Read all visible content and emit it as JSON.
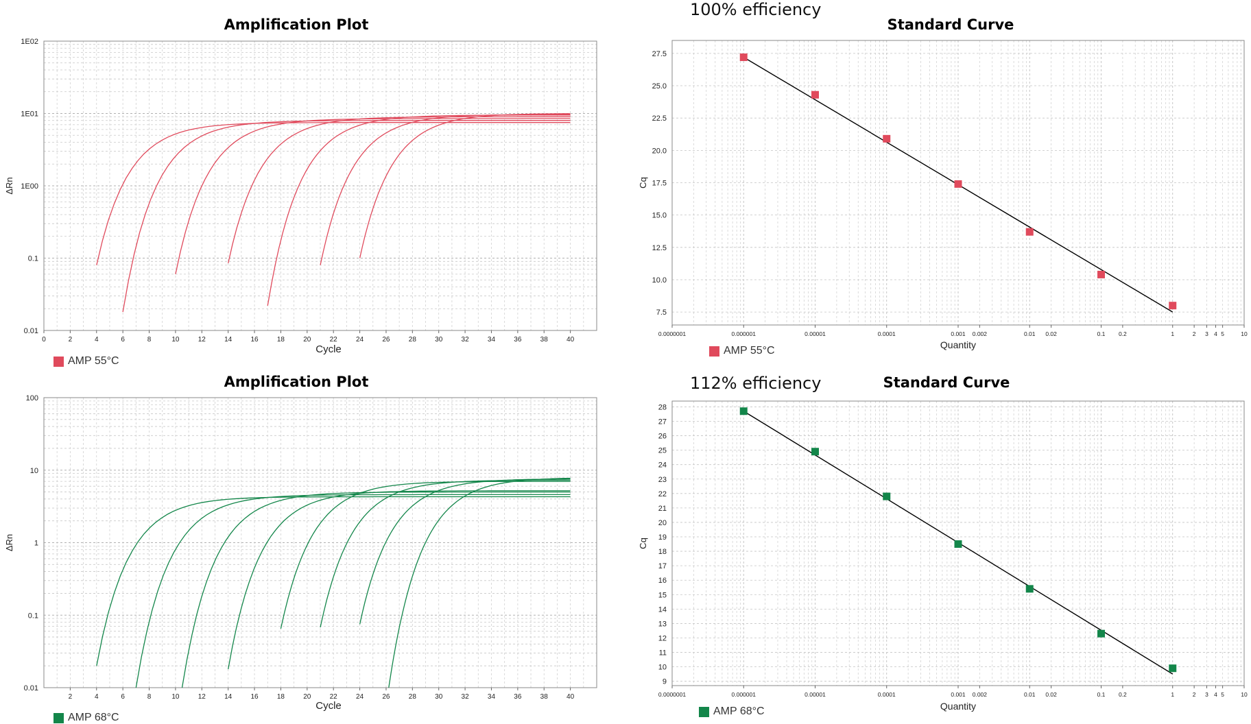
{
  "panels": {
    "amp1": {
      "title": "Amplification Plot",
      "legend": "AMP 55°C",
      "color": "#e04a5c"
    },
    "std1": {
      "efficiency": "100% efficiency",
      "title": "Standard Curve",
      "legend": "AMP 55°C",
      "color": "#e04a5c"
    },
    "amp2": {
      "title": "Amplification Plot",
      "legend": "AMP 68°C",
      "color": "#13864a"
    },
    "std2": {
      "efficiency": "112% efficiency",
      "title": "Standard Curve",
      "legend": "AMP 68°C",
      "color": "#13864a"
    }
  },
  "chart_data": [
    {
      "id": "amp1",
      "type": "line",
      "title": "Amplification Plot",
      "xlabel": "Cycle",
      "ylabel": "ΔRn",
      "yscale": "log",
      "xlim": [
        0,
        42
      ],
      "ylim": [
        0.01,
        100
      ],
      "xticks": [
        0,
        2,
        4,
        6,
        8,
        10,
        12,
        14,
        16,
        18,
        20,
        22,
        24,
        26,
        28,
        30,
        32,
        34,
        36,
        38,
        40
      ],
      "xtick_labels": [
        "0",
        "2",
        "4",
        "6",
        "8",
        "10",
        "12",
        "14",
        "16",
        "18",
        "20",
        "22",
        "24",
        "26",
        "28",
        "30",
        "32",
        "34",
        "36",
        "38",
        "40"
      ],
      "yticks": [
        0.01,
        0.1,
        1,
        10,
        100
      ],
      "ytick_labels": [
        "0.01",
        "0.1",
        "1E00",
        "1E01",
        "1E02"
      ],
      "grid": true,
      "color": "#e04a5c",
      "series": [
        {
          "start_cycle": 4,
          "start_value": 0.08,
          "plateau": 7.5,
          "end_cycle": 40
        },
        {
          "start_cycle": 6,
          "start_value": 0.018,
          "plateau": 8.0,
          "end_cycle": 40
        },
        {
          "start_cycle": 10,
          "start_value": 0.06,
          "plateau": 8.5,
          "end_cycle": 40
        },
        {
          "start_cycle": 14,
          "start_value": 0.085,
          "plateau": 9.0,
          "end_cycle": 40
        },
        {
          "start_cycle": 17,
          "start_value": 0.022,
          "plateau": 9.5,
          "end_cycle": 40
        },
        {
          "start_cycle": 21,
          "start_value": 0.08,
          "plateau": 9.7,
          "end_cycle": 40
        },
        {
          "start_cycle": 24,
          "start_value": 0.1,
          "plateau": 10.0,
          "end_cycle": 40
        }
      ]
    },
    {
      "id": "std1",
      "type": "scatter",
      "title": "Standard Curve",
      "xlabel": "Quantity",
      "ylabel": "Cq",
      "xscale": "log",
      "xlim": [
        1e-07,
        10
      ],
      "ylim": [
        6.5,
        28.5
      ],
      "xticks": [
        1e-07,
        1e-06,
        1e-05,
        0.0001,
        0.001,
        0.002,
        0.01,
        0.02,
        0.1,
        0.2,
        1,
        2,
        3,
        4,
        5,
        10
      ],
      "xtick_labels": [
        "0.0000001",
        "0.000001",
        "0.00001",
        "0.0001",
        "0.001",
        "0.002",
        "0.01",
        "0.02",
        "0.1",
        "0.2",
        "1",
        "2",
        "3",
        "4",
        "5",
        "10"
      ],
      "yticks": [
        7.5,
        10.0,
        12.5,
        15.0,
        17.5,
        20.0,
        22.5,
        25.0,
        27.5
      ],
      "ytick_labels": [
        "7.5",
        "10.0",
        "12.5",
        "15.0",
        "17.5",
        "20.0",
        "22.5",
        "25.0",
        "27.5"
      ],
      "grid": true,
      "color": "#e04a5c",
      "points": [
        {
          "x": 1e-06,
          "y": 27.2
        },
        {
          "x": 1e-05,
          "y": 24.3
        },
        {
          "x": 0.0001,
          "y": 20.9
        },
        {
          "x": 0.001,
          "y": 17.4
        },
        {
          "x": 0.01,
          "y": 13.7
        },
        {
          "x": 0.1,
          "y": 10.4
        },
        {
          "x": 1,
          "y": 8.0
        }
      ],
      "fit_line": [
        {
          "x": 1e-06,
          "y": 27.2
        },
        {
          "x": 1,
          "y": 7.5
        }
      ]
    },
    {
      "id": "amp2",
      "type": "line",
      "title": "Amplification Plot",
      "xlabel": "Cycle",
      "ylabel": "ΔRn",
      "yscale": "log",
      "xlim": [
        0,
        42
      ],
      "ylim": [
        0.01,
        100
      ],
      "xticks": [
        2,
        4,
        6,
        8,
        10,
        12,
        14,
        16,
        18,
        20,
        22,
        24,
        26,
        28,
        30,
        32,
        34,
        36,
        38,
        40
      ],
      "xtick_labels": [
        "2",
        "4",
        "6",
        "8",
        "10",
        "12",
        "14",
        "16",
        "18",
        "20",
        "22",
        "24",
        "26",
        "28",
        "30",
        "32",
        "34",
        "36",
        "38",
        "40"
      ],
      "yticks": [
        0.01,
        0.1,
        1,
        10,
        100
      ],
      "ytick_labels": [
        "0.01",
        "0.1",
        "1",
        "10",
        "100"
      ],
      "grid": true,
      "color": "#13864a",
      "series": [
        {
          "start_cycle": 4,
          "start_value": 0.02,
          "plateau": 4.3,
          "end_cycle": 40
        },
        {
          "start_cycle": 7,
          "start_value": 0.01,
          "plateau": 4.6,
          "end_cycle": 40
        },
        {
          "start_cycle": 10.5,
          "start_value": 0.01,
          "plateau": 5.0,
          "end_cycle": 40
        },
        {
          "start_cycle": 14,
          "start_value": 0.018,
          "plateau": 5.2,
          "end_cycle": 40
        },
        {
          "start_cycle": 18,
          "start_value": 0.065,
          "plateau": 7.0,
          "end_cycle": 40
        },
        {
          "start_cycle": 21,
          "start_value": 0.068,
          "plateau": 7.3,
          "end_cycle": 40
        },
        {
          "start_cycle": 24,
          "start_value": 0.075,
          "plateau": 7.6,
          "end_cycle": 40
        },
        {
          "start_cycle": 26.2,
          "start_value": 0.01,
          "plateau": 7.9,
          "end_cycle": 40
        }
      ]
    },
    {
      "id": "std2",
      "type": "scatter",
      "title": "Standard Curve",
      "xlabel": "Quantity",
      "ylabel": "Cq",
      "xscale": "log",
      "xlim": [
        1e-07,
        10
      ],
      "ylim": [
        8.7,
        28.4
      ],
      "xticks": [
        1e-07,
        1e-06,
        1e-05,
        0.0001,
        0.001,
        0.002,
        0.01,
        0.02,
        0.1,
        0.2,
        1,
        2,
        3,
        4,
        5,
        10
      ],
      "xtick_labels": [
        "0.0000001",
        "0.000001",
        "0.00001",
        "0.0001",
        "0.001",
        "0.002",
        "0.01",
        "0.02",
        "0.1",
        "0.2",
        "1",
        "2",
        "3",
        "4",
        "5",
        "10"
      ],
      "yticks": [
        9,
        10,
        11,
        12,
        13,
        14,
        15,
        16,
        17,
        18,
        19,
        20,
        21,
        22,
        23,
        24,
        25,
        26,
        27,
        28
      ],
      "ytick_labels": [
        "9",
        "10",
        "11",
        "12",
        "13",
        "14",
        "15",
        "16",
        "17",
        "18",
        "19",
        "20",
        "21",
        "22",
        "23",
        "24",
        "25",
        "26",
        "27",
        "28"
      ],
      "grid": true,
      "color": "#13864a",
      "points": [
        {
          "x": 1e-06,
          "y": 27.7
        },
        {
          "x": 1e-05,
          "y": 24.9
        },
        {
          "x": 0.0001,
          "y": 21.8
        },
        {
          "x": 0.001,
          "y": 18.5
        },
        {
          "x": 0.01,
          "y": 15.4
        },
        {
          "x": 0.1,
          "y": 12.3
        },
        {
          "x": 1,
          "y": 9.9
        }
      ],
      "fit_line": [
        {
          "x": 1e-06,
          "y": 27.7
        },
        {
          "x": 1,
          "y": 9.5
        }
      ]
    }
  ]
}
